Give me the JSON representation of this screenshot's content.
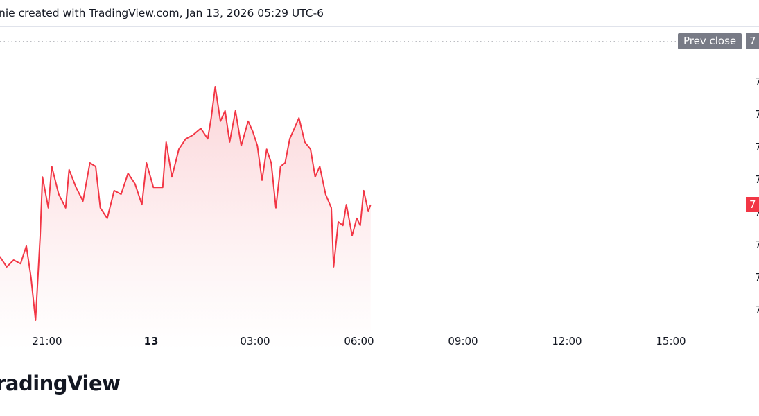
{
  "header": {
    "text": "nie created with TradingView.com, Jan 13, 2026 05:29 UTC-6"
  },
  "logo": {
    "text": "TradingView"
  },
  "prev_close": {
    "label": "Prev close",
    "value": "7"
  },
  "current_price_label": "7",
  "colors": {
    "line": "#f23645",
    "fill": "#fde4e6",
    "prev_close_bg": "#787b86",
    "current_badge": "#f23645"
  },
  "chart_data": {
    "type": "area",
    "title": "",
    "xlabel": "",
    "ylabel": "",
    "x_tick_labels": [
      "21:00",
      "13",
      "03:00",
      "06:00",
      "09:00",
      "12:00",
      "15:00"
    ],
    "y_tick_labels": [
      "7",
      "7",
      "7",
      "7",
      "7",
      "7",
      "7",
      "7"
    ],
    "y_units_note": "price labels truncated at right edge; values in tick-step units above the lowest visible tick",
    "prev_close_level": 8.21,
    "grid": false,
    "x": [
      "19:38",
      "19:50",
      "20:02",
      "20:14",
      "20:24",
      "20:32",
      "20:40",
      "20:48",
      "20:52",
      "21:02",
      "21:08",
      "21:20",
      "21:32",
      "21:38",
      "21:50",
      "22:02",
      "22:14",
      "22:24",
      "22:32",
      "22:44",
      "22:56",
      "23:08",
      "23:20",
      "23:32",
      "23:44",
      "23:52",
      "00:04",
      "00:20",
      "00:26",
      "00:36",
      "00:48",
      "01:00",
      "01:12",
      "01:26",
      "01:38",
      "01:44",
      "01:51",
      "02:00",
      "02:08",
      "02:16",
      "02:26",
      "02:36",
      "02:48",
      "02:56",
      "03:04",
      "03:12",
      "03:20",
      "03:28",
      "03:36",
      "03:44",
      "03:52",
      "04:00",
      "04:08",
      "04:16",
      "04:26",
      "04:36",
      "04:44",
      "04:52",
      "05:02",
      "05:12",
      "05:16",
      "05:24",
      "05:32",
      "05:38",
      "05:48",
      "05:56",
      "06:02",
      "06:08",
      "06:16",
      "06:20"
    ],
    "values": [
      1.62,
      1.3,
      1.51,
      1.4,
      1.94,
      0.98,
      -0.34,
      2.26,
      4.06,
      3.11,
      4.38,
      3.53,
      3.11,
      4.28,
      3.74,
      3.32,
      4.49,
      4.38,
      3.11,
      2.79,
      3.64,
      3.53,
      4.17,
      3.85,
      3.21,
      4.49,
      3.74,
      3.74,
      5.13,
      4.06,
      4.91,
      5.23,
      5.34,
      5.55,
      5.23,
      5.87,
      6.83,
      5.77,
      6.09,
      5.13,
      6.09,
      5.02,
      5.77,
      5.45,
      5.02,
      3.96,
      4.91,
      4.49,
      3.11,
      4.38,
      4.49,
      5.23,
      5.55,
      5.87,
      5.13,
      4.91,
      4.06,
      4.38,
      3.53,
      3.11,
      1.3,
      2.68,
      2.57,
      3.21,
      2.26,
      2.79,
      2.57,
      3.64,
      3.0,
      3.21
    ]
  }
}
